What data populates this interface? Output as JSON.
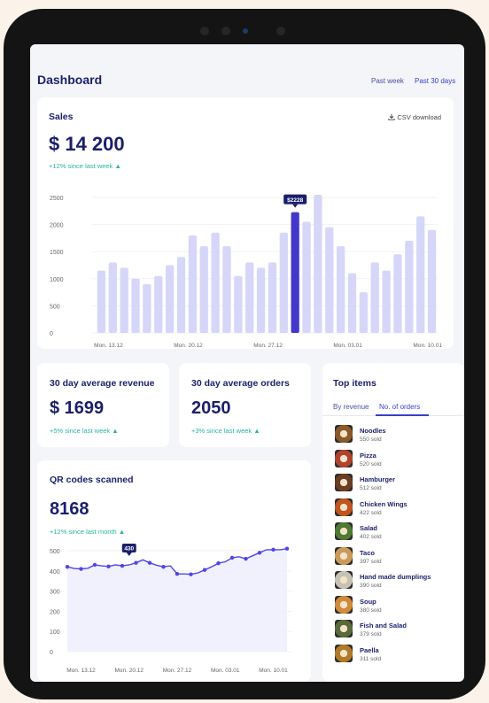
{
  "header": {
    "title": "Dashboard",
    "range_week": "Past week",
    "range_month": "Past 30 days"
  },
  "sales": {
    "title": "Sales",
    "csv_label": "CSV download",
    "total": "$ 14 200",
    "delta": "+12% since last week",
    "highlight_label": "$2228",
    "highlight_index": 17,
    "chart_data": {
      "type": "bar",
      "ylim": [
        0,
        2500
      ],
      "yticks": [
        "0",
        "500",
        "1000",
        "1500",
        "2000",
        "2500"
      ],
      "xticks": [
        {
          "index": 0,
          "label": "Mon. 13.12"
        },
        {
          "index": 7,
          "label": "Mon. 20.12"
        },
        {
          "index": 14,
          "label": "Mon. 27.12"
        },
        {
          "index": 21,
          "label": "Mon. 03.01"
        },
        {
          "index": 28,
          "label": "Mon. 10.01"
        }
      ],
      "values": [
        1150,
        1300,
        1200,
        1000,
        900,
        1050,
        1250,
        1400,
        1800,
        1600,
        1850,
        1600,
        1050,
        1300,
        1200,
        1300,
        1850,
        2228,
        2050,
        2550,
        1950,
        1600,
        1100,
        750,
        1300,
        1150,
        1450,
        1700,
        2150,
        1900
      ],
      "colors": {
        "bar": "#d5d6f8",
        "highlight": "#4338ca"
      }
    }
  },
  "avg_revenue": {
    "title": "30 day average revenue",
    "value": "$ 1699",
    "delta": "+5% since last week"
  },
  "avg_orders": {
    "title": "30 day average orders",
    "value": "2050",
    "delta": "+3% since last week"
  },
  "qr": {
    "title": "QR codes scanned",
    "value": "8168",
    "delta": "+12% since last month",
    "highlight_label": "430",
    "highlight_index": 9,
    "chart_data": {
      "type": "line",
      "ylim": [
        0,
        500
      ],
      "yticks": [
        "0",
        "100",
        "200",
        "300",
        "400",
        "500"
      ],
      "xticks": [
        {
          "index": 2,
          "label": "Mon. 13.12"
        },
        {
          "index": 9,
          "label": "Mon. 20.12"
        },
        {
          "index": 16,
          "label": "Mon. 27.12"
        },
        {
          "index": 23,
          "label": "Mon. 03.01"
        },
        {
          "index": 30,
          "label": "Mon. 10.01"
        }
      ],
      "values": [
        420,
        412,
        410,
        413,
        430,
        425,
        422,
        430,
        425,
        430,
        440,
        455,
        440,
        428,
        420,
        425,
        385,
        385,
        383,
        390,
        405,
        420,
        438,
        445,
        465,
        470,
        460,
        475,
        490,
        505,
        505,
        505,
        510
      ],
      "colors": {
        "line": "#4f46e5",
        "fill": "#eef0fd"
      }
    }
  },
  "top_items": {
    "title": "Top items",
    "tab_revenue": "By revenue",
    "tab_orders": "No. of orders",
    "items": [
      {
        "name": "Noodles",
        "sold": "550 sold",
        "color": "#8a5a2b"
      },
      {
        "name": "Pizza",
        "sold": "520 sold",
        "color": "#b0432e"
      },
      {
        "name": "Hamburger",
        "sold": "512 sold",
        "color": "#6b3d22"
      },
      {
        "name": "Chicken Wings",
        "sold": "422 sold",
        "color": "#c0561e"
      },
      {
        "name": "Salad",
        "sold": "402 sold",
        "color": "#4f7a33"
      },
      {
        "name": "Taco",
        "sold": "397 sold",
        "color": "#c89b5a"
      },
      {
        "name": "Hand made dumplings",
        "sold": "390 sold",
        "color": "#c8c2b6"
      },
      {
        "name": "Soup",
        "sold": "380 sold",
        "color": "#d08a3a"
      },
      {
        "name": "Fish and Salad",
        "sold": "379 sold",
        "color": "#5a6a3a"
      },
      {
        "name": "Paella",
        "sold": "311 sold",
        "color": "#b07a2a"
      }
    ]
  }
}
